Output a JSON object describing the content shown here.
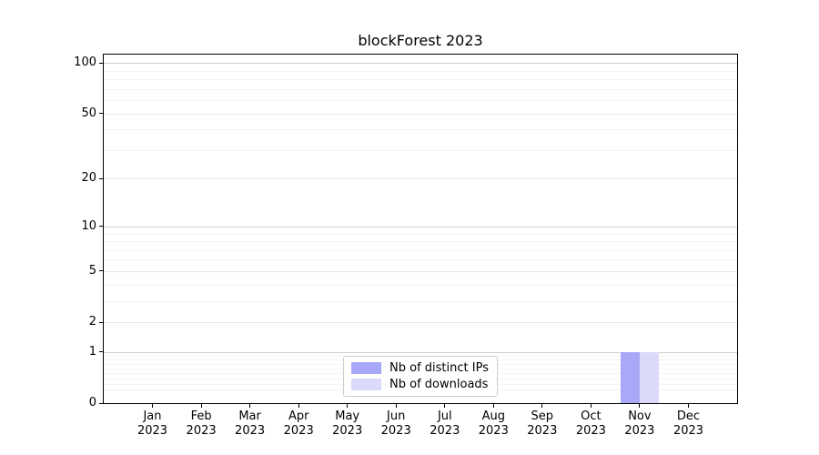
{
  "chart_data": {
    "type": "bar",
    "title": "blockForest 2023",
    "categories": [
      "Jan 2023",
      "Feb 2023",
      "Mar 2023",
      "Apr 2023",
      "May 2023",
      "Jun 2023",
      "Jul 2023",
      "Aug 2023",
      "Sep 2023",
      "Oct 2023",
      "Nov 2023",
      "Dec 2023"
    ],
    "series": [
      {
        "name": "Nb of distinct IPs",
        "color": "#a8a8f8",
        "values": [
          0,
          0,
          0,
          0,
          0,
          0,
          0,
          0,
          0,
          0,
          1,
          0
        ]
      },
      {
        "name": "Nb of downloads",
        "color": "#dbdbf9",
        "values": [
          0,
          0,
          0,
          0,
          0,
          0,
          0,
          0,
          0,
          0,
          1,
          0
        ]
      }
    ],
    "xlabel": "",
    "ylabel": "",
    "yscale": "log1p",
    "ylim": [
      0,
      112
    ],
    "yticks": [
      100,
      50,
      20,
      10,
      5,
      2,
      1,
      0
    ],
    "major_grid_values": [
      100,
      10,
      1
    ],
    "minor_gridlines": [
      0.2,
      0.3,
      0.4,
      0.5,
      0.6,
      0.7,
      0.8,
      0.9,
      3,
      4,
      6,
      7,
      8,
      9,
      30,
      40,
      60,
      70,
      80,
      90
    ],
    "grid": "horizontal",
    "legend_position": "lower center",
    "bar_width_fraction": 0.4
  }
}
